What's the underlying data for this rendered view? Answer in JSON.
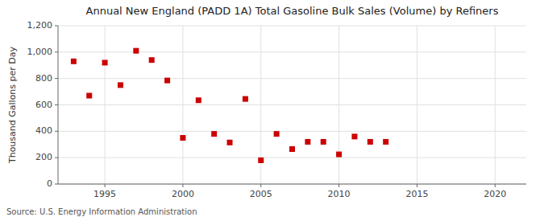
{
  "chart_data": {
    "type": "scatter",
    "title": "Annual New England (PADD 1A) Total Gasoline Bulk Sales (Volume) by Refiners",
    "ylabel": "Thousand Gallons per Day",
    "source": "Source: U.S. Energy Information Administration",
    "x": [
      1993,
      1994,
      1995,
      1996,
      1997,
      1998,
      1999,
      2000,
      2001,
      2002,
      2003,
      2004,
      2005,
      2006,
      2007,
      2008,
      2009,
      2010,
      2011,
      2012,
      2013
    ],
    "values": [
      930,
      670,
      920,
      750,
      1010,
      940,
      785,
      350,
      635,
      380,
      315,
      645,
      180,
      380,
      265,
      320,
      320,
      225,
      360,
      320,
      320
    ],
    "color": "#cc0000",
    "marker": "square",
    "xlim": [
      1992,
      2022
    ],
    "ylim": [
      0,
      1200
    ],
    "xticks": [
      1995,
      2000,
      2005,
      2010,
      2015,
      2020
    ],
    "yticks": [
      0,
      200,
      400,
      600,
      800,
      {
        "value": 1000,
        "label": "1,000"
      },
      {
        "value": 1200,
        "label": "1,200"
      }
    ],
    "grid": true
  }
}
